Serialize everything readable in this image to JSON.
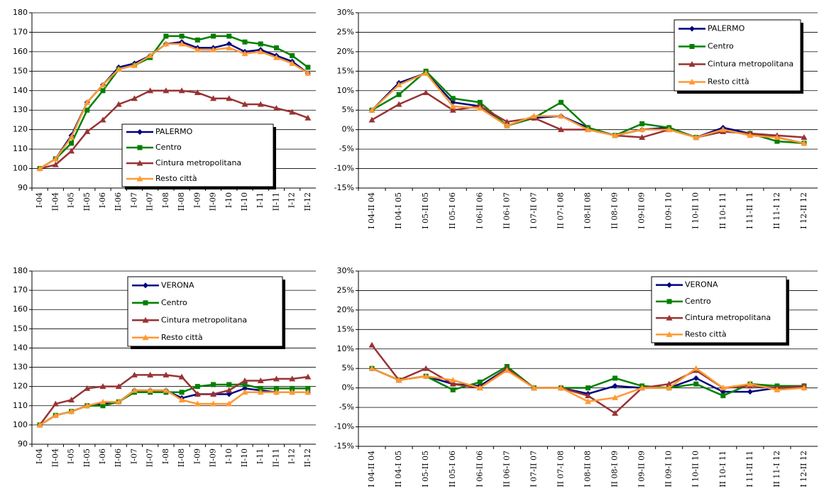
{
  "chart_data": [
    {
      "type": "line",
      "grid": true,
      "categories": [
        "I-04",
        "II-04",
        "I-05",
        "II-05",
        "I-06",
        "II-06",
        "I-07",
        "II-07",
        "I-08",
        "II-08",
        "I-09",
        "II-09",
        "I-10",
        "II-10",
        "I-11",
        "II-11",
        "I-12",
        "II-12"
      ],
      "ylim": [
        90,
        180
      ],
      "yticks": [
        90,
        100,
        110,
        120,
        130,
        140,
        150,
        160,
        170,
        180
      ],
      "series": [
        {
          "name": "PALERMO",
          "color": "#000080",
          "marker": "diamond",
          "values": [
            100,
            105,
            117,
            134,
            143,
            152,
            154,
            158,
            164,
            165,
            162,
            162,
            164,
            160,
            161,
            158,
            155,
            149
          ]
        },
        {
          "name": "Centro",
          "color": "#008000",
          "marker": "square",
          "values": [
            100,
            105,
            113,
            130,
            140,
            151,
            153,
            157,
            168,
            168,
            166,
            168,
            168,
            165,
            164,
            162,
            158,
            152
          ]
        },
        {
          "name": "Cintura metropolitana",
          "color": "#993333",
          "marker": "triangle",
          "values": [
            100,
            102,
            109,
            119,
            125,
            133,
            136,
            140,
            140,
            140,
            139,
            136,
            136,
            133,
            133,
            131,
            129,
            126
          ]
        },
        {
          "name": "Resto città",
          "color": "#FF9933",
          "marker": "triangle",
          "values": [
            100,
            105,
            116,
            134,
            143,
            151,
            153,
            158,
            164,
            164,
            161,
            161,
            162,
            159,
            160,
            157,
            154,
            149
          ]
        }
      ]
    },
    {
      "type": "line",
      "grid": true,
      "categories": [
        "I 04-II 04",
        "II 04-I 05",
        "I 05-II 05",
        "II 05-I 06",
        "I 06-II 06",
        "II 06-I 07",
        "I 07-II 07",
        "II 07-I 08",
        "I 08-II 08",
        "II 08-I 09",
        "I 09-II 09",
        "II 09-I 10",
        "I 10-II 10",
        "II 10-I 11",
        "I 11-II 11",
        "II 11-I 12",
        "I 12-II 12"
      ],
      "ylim": [
        -15,
        30
      ],
      "yticks": [
        {
          "value": -15,
          "label": "-15%"
        },
        {
          "value": -10,
          "label": "-10%"
        },
        {
          "value": -5,
          "label": "-5%"
        },
        {
          "value": 0,
          "label": "0%"
        },
        {
          "value": 5,
          "label": "5%"
        },
        {
          "value": 10,
          "label": "10%"
        },
        {
          "value": 15,
          "label": "15%"
        },
        {
          "value": 20,
          "label": "20%"
        },
        {
          "value": 25,
          "label": "25%"
        },
        {
          "value": 30,
          "label": "30%"
        }
      ],
      "series": [
        {
          "name": "PALERMO",
          "color": "#000080",
          "marker": "diamond",
          "values": [
            5,
            12,
            14.5,
            7,
            6,
            1,
            3,
            3.5,
            0.5,
            -1.5,
            0,
            0.5,
            -2,
            0.5,
            -1,
            -2,
            -3.5
          ]
        },
        {
          "name": "Centro",
          "color": "#008000",
          "marker": "square",
          "values": [
            5,
            9,
            15,
            8,
            7,
            1,
            3,
            7,
            0.5,
            -1.5,
            1.5,
            0.5,
            -2,
            -0.5,
            -1,
            -3,
            -3.5
          ]
        },
        {
          "name": "Cintura metropolitana",
          "color": "#993333",
          "marker": "triangle",
          "values": [
            2.5,
            6.5,
            9.5,
            5,
            6,
            2,
            3,
            0,
            0,
            -1.5,
            -2,
            0,
            -2,
            -0.5,
            -1,
            -1.5,
            -2
          ]
        },
        {
          "name": "Resto città",
          "color": "#FF9933",
          "marker": "triangle",
          "values": [
            5,
            11.5,
            14.5,
            6,
            5.5,
            1,
            3.5,
            3.5,
            0,
            -1.5,
            0,
            0,
            -2,
            0,
            -1.5,
            -2,
            -3.5
          ]
        }
      ]
    },
    {
      "type": "line",
      "grid": true,
      "categories": [
        "I-04",
        "II-04",
        "I-05",
        "II-05",
        "I-06",
        "II-06",
        "I-07",
        "II-07",
        "I-08",
        "II-08",
        "I-09",
        "II-09",
        "I-10",
        "II-10",
        "I-11",
        "II-11",
        "I-12",
        "II-12"
      ],
      "ylim": [
        90,
        180
      ],
      "yticks": [
        90,
        100,
        110,
        120,
        130,
        140,
        150,
        160,
        170,
        180
      ],
      "series": [
        {
          "name": "VERONA",
          "color": "#000080",
          "marker": "diamond",
          "values": [
            100,
            105,
            107,
            110,
            111,
            112,
            118,
            118,
            118,
            114,
            116,
            116,
            116,
            119,
            118,
            117,
            117,
            117
          ]
        },
        {
          "name": "Centro",
          "color": "#008000",
          "marker": "square",
          "values": [
            100,
            105,
            107,
            110,
            110,
            112,
            117,
            117,
            117,
            117,
            120,
            121,
            121,
            121,
            119,
            119,
            119,
            119
          ]
        },
        {
          "name": "Cintura metropolitana",
          "color": "#993333",
          "marker": "triangle",
          "values": [
            100,
            111,
            113,
            119,
            120,
            120,
            126,
            126,
            126,
            125,
            116,
            116,
            118,
            123,
            123,
            124,
            124,
            125
          ]
        },
        {
          "name": "Resto città",
          "color": "#FF9933",
          "marker": "triangle",
          "values": [
            100,
            105,
            107,
            110,
            112,
            112,
            118,
            118,
            118,
            113,
            111,
            111,
            111,
            117,
            117,
            117,
            117,
            117
          ]
        }
      ]
    },
    {
      "type": "line",
      "grid": true,
      "categories": [
        "I 04-II 04",
        "II 04-I 05",
        "I 05-II 05",
        "II 05-I 06",
        "I 06-II 06",
        "II 06-I 07",
        "I 07-II 07",
        "II 07-I 08",
        "I 08-II 08",
        "II 08-I 09",
        "I 09-II 09",
        "II 09-I 10",
        "I 10-II 10",
        "II 10-I 11",
        "I 11-II 11",
        "II 11-I 12",
        "I 12-II 12"
      ],
      "ylim": [
        -15,
        30
      ],
      "yticks": [
        {
          "value": -15,
          "label": "-15%"
        },
        {
          "value": -10,
          "label": "-10%"
        },
        {
          "value": -5,
          "label": "-5%"
        },
        {
          "value": 0,
          "label": "0%"
        },
        {
          "value": 5,
          "label": "5%"
        },
        {
          "value": 10,
          "label": "10%"
        },
        {
          "value": 15,
          "label": "15%"
        },
        {
          "value": 20,
          "label": "20%"
        },
        {
          "value": 25,
          "label": "25%"
        },
        {
          "value": 30,
          "label": "30%"
        }
      ],
      "series": [
        {
          "name": "VERONA",
          "color": "#000080",
          "marker": "diamond",
          "values": [
            5,
            2,
            3,
            1,
            0.5,
            5,
            0,
            0,
            -1.5,
            0.5,
            0,
            0,
            2.5,
            -1,
            -1,
            0,
            0
          ]
        },
        {
          "name": "Centro",
          "color": "#008000",
          "marker": "square",
          "values": [
            5,
            2,
            3,
            -0.5,
            1.5,
            5.5,
            0,
            0,
            0,
            2.5,
            0.5,
            0,
            1,
            -2,
            1,
            0.5,
            0.5
          ]
        },
        {
          "name": "Cintura metropolitana",
          "color": "#993333",
          "marker": "triangle",
          "values": [
            11,
            2,
            5,
            1,
            0,
            5,
            0,
            0,
            -2,
            -6.5,
            0,
            1,
            4.5,
            0,
            0.5,
            0,
            0.5
          ]
        },
        {
          "name": "Resto città",
          "color": "#FF9933",
          "marker": "triangle",
          "values": [
            5,
            2,
            3,
            2,
            0,
            4.5,
            0,
            0,
            -3.5,
            -2.5,
            0,
            0,
            5,
            0,
            1,
            -0.5,
            0
          ]
        }
      ]
    }
  ]
}
